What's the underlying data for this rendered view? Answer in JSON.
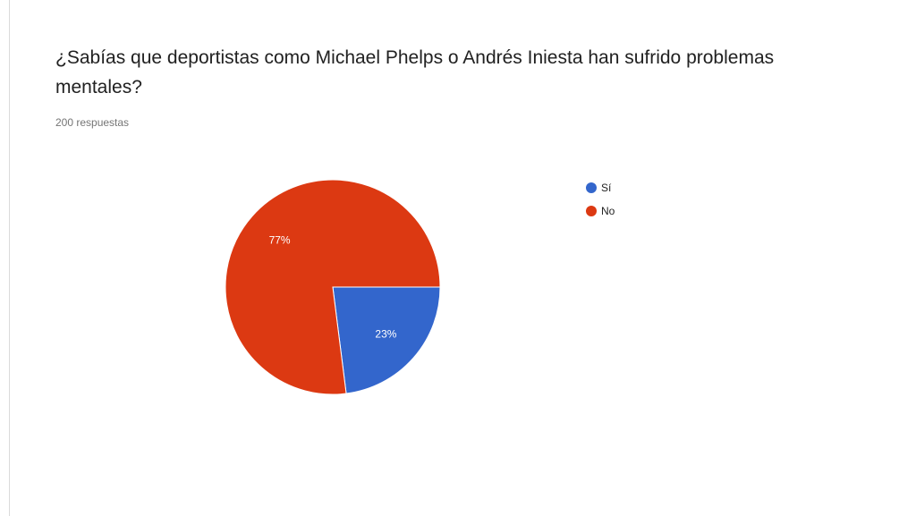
{
  "question": {
    "title": "¿Sabías que deportistas como Michael Phelps o Andrés Iniesta han sufrido problemas mentales?",
    "responses": "200 respuestas"
  },
  "chart_data": {
    "type": "pie",
    "categories": [
      "Sí",
      "No"
    ],
    "values": [
      23,
      77
    ],
    "labels": [
      "23%",
      "77%"
    ],
    "colors": [
      "#3366cc",
      "#dc3912"
    ],
    "legend_position": "right"
  }
}
